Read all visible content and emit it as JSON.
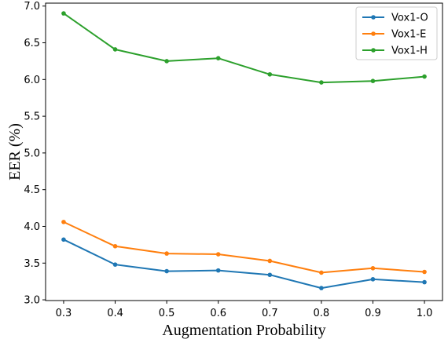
{
  "chart_data": {
    "type": "line",
    "title": "",
    "xlabel": "Augmentation Probability",
    "ylabel": "EER (%)",
    "x": [
      0.3,
      0.4,
      0.5,
      0.6,
      0.7,
      0.8,
      0.9,
      1.0
    ],
    "x_tick_labels": [
      "0.3",
      "0.4",
      "0.5",
      "0.6",
      "0.7",
      "0.8",
      "0.9",
      "1.0"
    ],
    "y_ticks": [
      3.0,
      3.5,
      4.0,
      4.5,
      5.0,
      5.5,
      6.0,
      6.5,
      7.0
    ],
    "y_tick_labels": [
      "3.0",
      "3.5",
      "4.0",
      "4.5",
      "5.0",
      "5.5",
      "6.0",
      "6.5",
      "7.0"
    ],
    "xlim": [
      0.265,
      1.035
    ],
    "ylim": [
      2.99,
      7.04
    ],
    "grid": false,
    "legend_position": "top-right",
    "series": [
      {
        "name": "Vox1-O",
        "color": "#1f77b4",
        "values": [
          3.82,
          3.48,
          3.39,
          3.4,
          3.34,
          3.16,
          3.28,
          3.24
        ]
      },
      {
        "name": "Vox1-E",
        "color": "#ff7f0e",
        "values": [
          4.06,
          3.73,
          3.63,
          3.62,
          3.53,
          3.37,
          3.43,
          3.38
        ]
      },
      {
        "name": "Vox1-H",
        "color": "#2ca02c",
        "values": [
          6.9,
          6.41,
          6.25,
          6.29,
          6.07,
          5.96,
          5.98,
          6.04
        ]
      }
    ]
  }
}
